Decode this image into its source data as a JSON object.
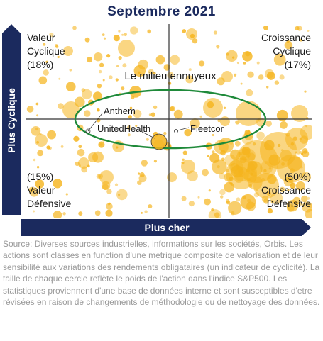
{
  "title": "Septembre 2021",
  "colors": {
    "navy": "#1b2a5e",
    "bubble": "#f5b41c",
    "ellipse": "#1f8a3a",
    "axis": "#333333"
  },
  "axes": {
    "y_label": "Plus Cyclique",
    "x_label": "Plus cher"
  },
  "quadrants": {
    "top_left": [
      "Valeur",
      "Cyclique",
      "(18%)"
    ],
    "top_right": [
      "Croissance",
      "Cyclique",
      "(17%)"
    ],
    "bottom_left": [
      "(15%)",
      "Valeur",
      "Défensive"
    ],
    "bottom_right": [
      "(50%)",
      "Croissance",
      "Défensive"
    ]
  },
  "chart_data": {
    "type": "scatter",
    "title": "Septembre 2021",
    "xlabel": "Plus cher",
    "ylabel": "Plus Cyclique",
    "center_label": "Le milieu ennuyeux",
    "quadrant_weights": {
      "Valeur Cyclique": 18,
      "Croissance Cyclique": 17,
      "Valeur Défensive": 15,
      "Croissance Défensive": 50
    },
    "annotations": [
      "Anthem",
      "UnitedHealth",
      "Fleetcor"
    ]
  },
  "source_text": "Source: Diverses sources industrielles, informations sur les sociétés, Orbis. Les actions sont classes en function d'une metrique composite de valorisation et de leur sensibilité aux variations des rendements obligataires (un indicateur de cyclicité). La taille de chaque cercle reflète le poids de l'action dans l'indice S&P500. Les statistiques proviennent d'une base de données interne et sont susceptibles d'etre révisées en raison de changements de méthodologie ou de nettoyage des données."
}
